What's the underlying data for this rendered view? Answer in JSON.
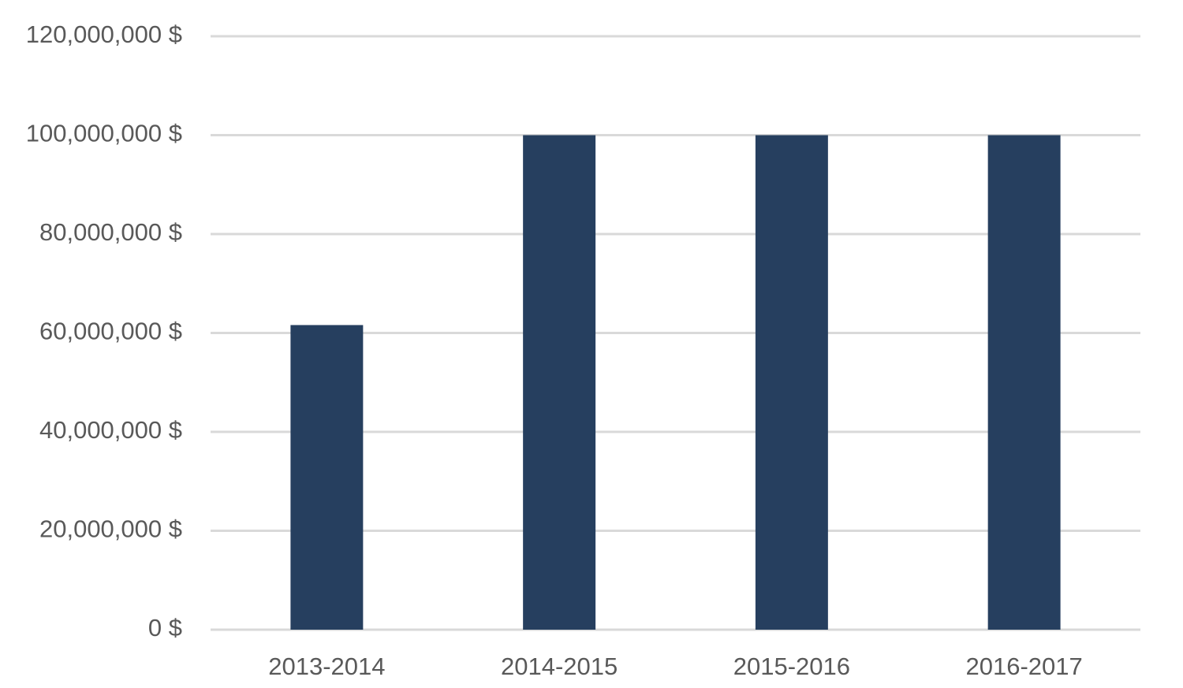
{
  "chart_data": {
    "type": "bar",
    "categories": [
      "2013-2014",
      "2014-2015",
      "2015-2016",
      "2016-2017"
    ],
    "values": [
      61600000,
      100000000,
      100000000,
      100000000
    ],
    "color": "#263f5f",
    "ylim": [
      0,
      120000000
    ],
    "yticks": [
      {
        "value": 0,
        "label": "0 $"
      },
      {
        "value": 20000000,
        "label": "20,000,000 $"
      },
      {
        "value": 40000000,
        "label": "40,000,000 $"
      },
      {
        "value": 60000000,
        "label": "60,000,000 $"
      },
      {
        "value": 80000000,
        "label": "80,000,000 $"
      },
      {
        "value": 100000000,
        "label": "100,000,000 $"
      },
      {
        "value": 120000000,
        "label": "120,000,000 $"
      }
    ],
    "grid": true
  }
}
